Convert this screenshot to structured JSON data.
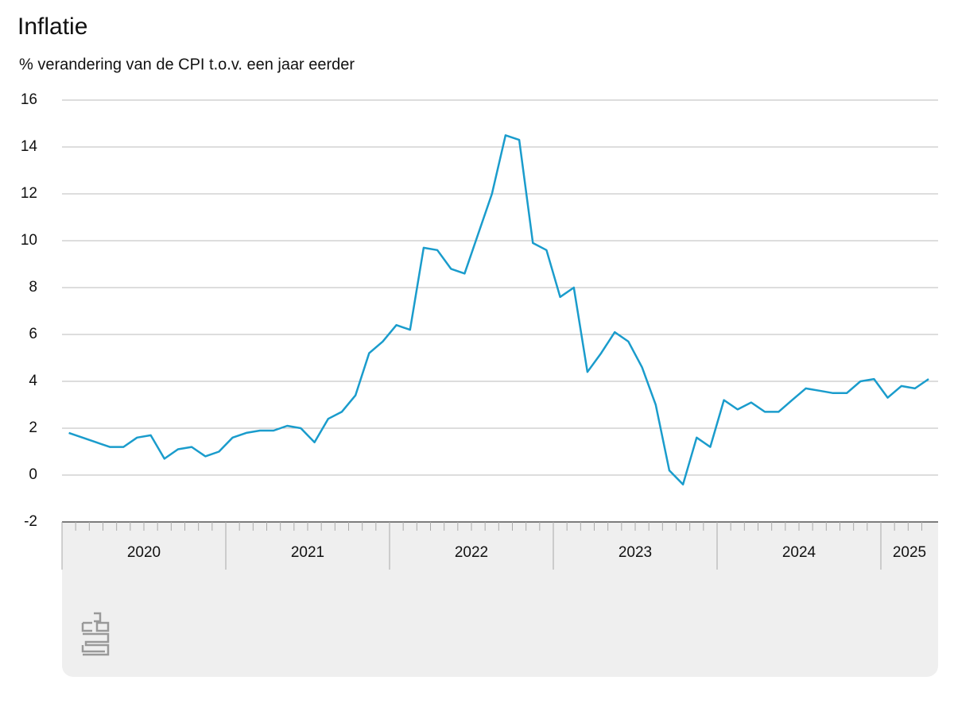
{
  "chart_data": {
    "type": "line",
    "title": "Inflatie",
    "subtitle": "% verandering van de CPI t.o.v. een jaar eerder",
    "categories": [
      "2020",
      null,
      null,
      null,
      null,
      null,
      null,
      null,
      null,
      null,
      null,
      null,
      "2021",
      null,
      null,
      null,
      null,
      null,
      null,
      null,
      null,
      null,
      null,
      null,
      "2022",
      null,
      null,
      null,
      null,
      null,
      null,
      null,
      null,
      null,
      null,
      null,
      "2023",
      null,
      null,
      null,
      null,
      null,
      null,
      null,
      null,
      null,
      null,
      null,
      "2024",
      null,
      null,
      null,
      null,
      null,
      null,
      null,
      null,
      null,
      null,
      null,
      "2025",
      null,
      null,
      null
    ],
    "series": [
      {
        "name": "CPI",
        "color": "#1a9ccc",
        "values": [
          1.8,
          1.6,
          1.4,
          1.2,
          1.2,
          1.6,
          1.7,
          0.7,
          1.1,
          1.2,
          0.8,
          1.0,
          1.6,
          1.8,
          1.9,
          1.9,
          2.1,
          2.0,
          1.4,
          2.4,
          2.7,
          3.4,
          5.2,
          5.7,
          6.4,
          6.2,
          9.7,
          9.6,
          8.8,
          8.6,
          10.3,
          12.0,
          14.5,
          14.3,
          9.9,
          9.6,
          7.6,
          8.0,
          4.4,
          5.2,
          6.1,
          5.7,
          4.6,
          3.0,
          0.2,
          -0.4,
          1.6,
          1.2,
          3.2,
          2.8,
          3.1,
          2.7,
          2.7,
          3.2,
          3.7,
          3.6,
          3.5,
          3.5,
          4.0,
          4.1,
          3.3,
          3.8,
          3.7,
          4.1
        ]
      }
    ],
    "ylim": [
      -2,
      16
    ],
    "yticks": [
      -2,
      0,
      2,
      4,
      6,
      8,
      10,
      12,
      14,
      16
    ],
    "grid": true
  }
}
